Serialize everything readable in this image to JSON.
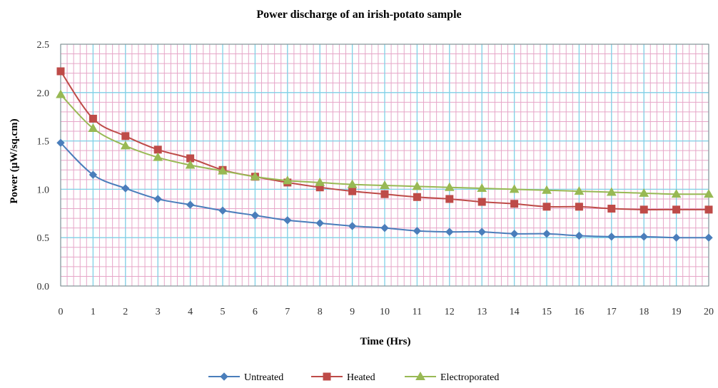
{
  "chart_data": {
    "type": "line",
    "title": "Power discharge of an  irish-potato sample",
    "xlabel": "Time (Hrs)",
    "ylabel": "Power (µW/sq.cm)",
    "x": [
      0,
      1,
      2,
      3,
      4,
      5,
      6,
      7,
      8,
      9,
      10,
      11,
      12,
      13,
      14,
      15,
      16,
      17,
      18,
      19,
      20
    ],
    "x_ticks": [
      "0",
      "1",
      "2",
      "3",
      "4",
      "5",
      "6",
      "7",
      "8",
      "9",
      "10",
      "11",
      "12",
      "13",
      "14",
      "15",
      "16",
      "17",
      "18",
      "19",
      "20"
    ],
    "xlim": [
      0,
      20
    ],
    "ylim": [
      0,
      2.5
    ],
    "y_ticks": [
      "0.0",
      "0.5",
      "1.0",
      "1.5",
      "2.0",
      "2.5"
    ],
    "y_tick_values": [
      0,
      0.5,
      1.0,
      1.5,
      2.0,
      2.5
    ],
    "grid": true,
    "legend_position": "bottom",
    "series": [
      {
        "name": "Untreated",
        "color": "#4a7ebb",
        "marker": "diamond",
        "values": [
          1.48,
          1.15,
          1.01,
          0.9,
          0.84,
          0.78,
          0.73,
          0.68,
          0.65,
          0.62,
          0.6,
          0.57,
          0.56,
          0.56,
          0.54,
          0.54,
          0.52,
          0.51,
          0.51,
          0.5,
          0.5
        ]
      },
      {
        "name": "Heated",
        "color": "#be4b48",
        "marker": "square",
        "values": [
          2.22,
          1.73,
          1.55,
          1.41,
          1.32,
          1.2,
          1.13,
          1.07,
          1.02,
          0.98,
          0.95,
          0.92,
          0.9,
          0.87,
          0.85,
          0.82,
          0.82,
          0.8,
          0.79,
          0.79,
          0.79
        ]
      },
      {
        "name": "Electroporated",
        "color": "#98b954",
        "marker": "triangle",
        "values": [
          1.98,
          1.63,
          1.45,
          1.33,
          1.25,
          1.19,
          1.13,
          1.09,
          1.07,
          1.05,
          1.04,
          1.03,
          1.02,
          1.01,
          1.0,
          0.99,
          0.98,
          0.97,
          0.96,
          0.95,
          0.95
        ]
      }
    ],
    "grid_colors": {
      "major": "#7fd3e8",
      "minor": "#e6a6c8"
    }
  }
}
